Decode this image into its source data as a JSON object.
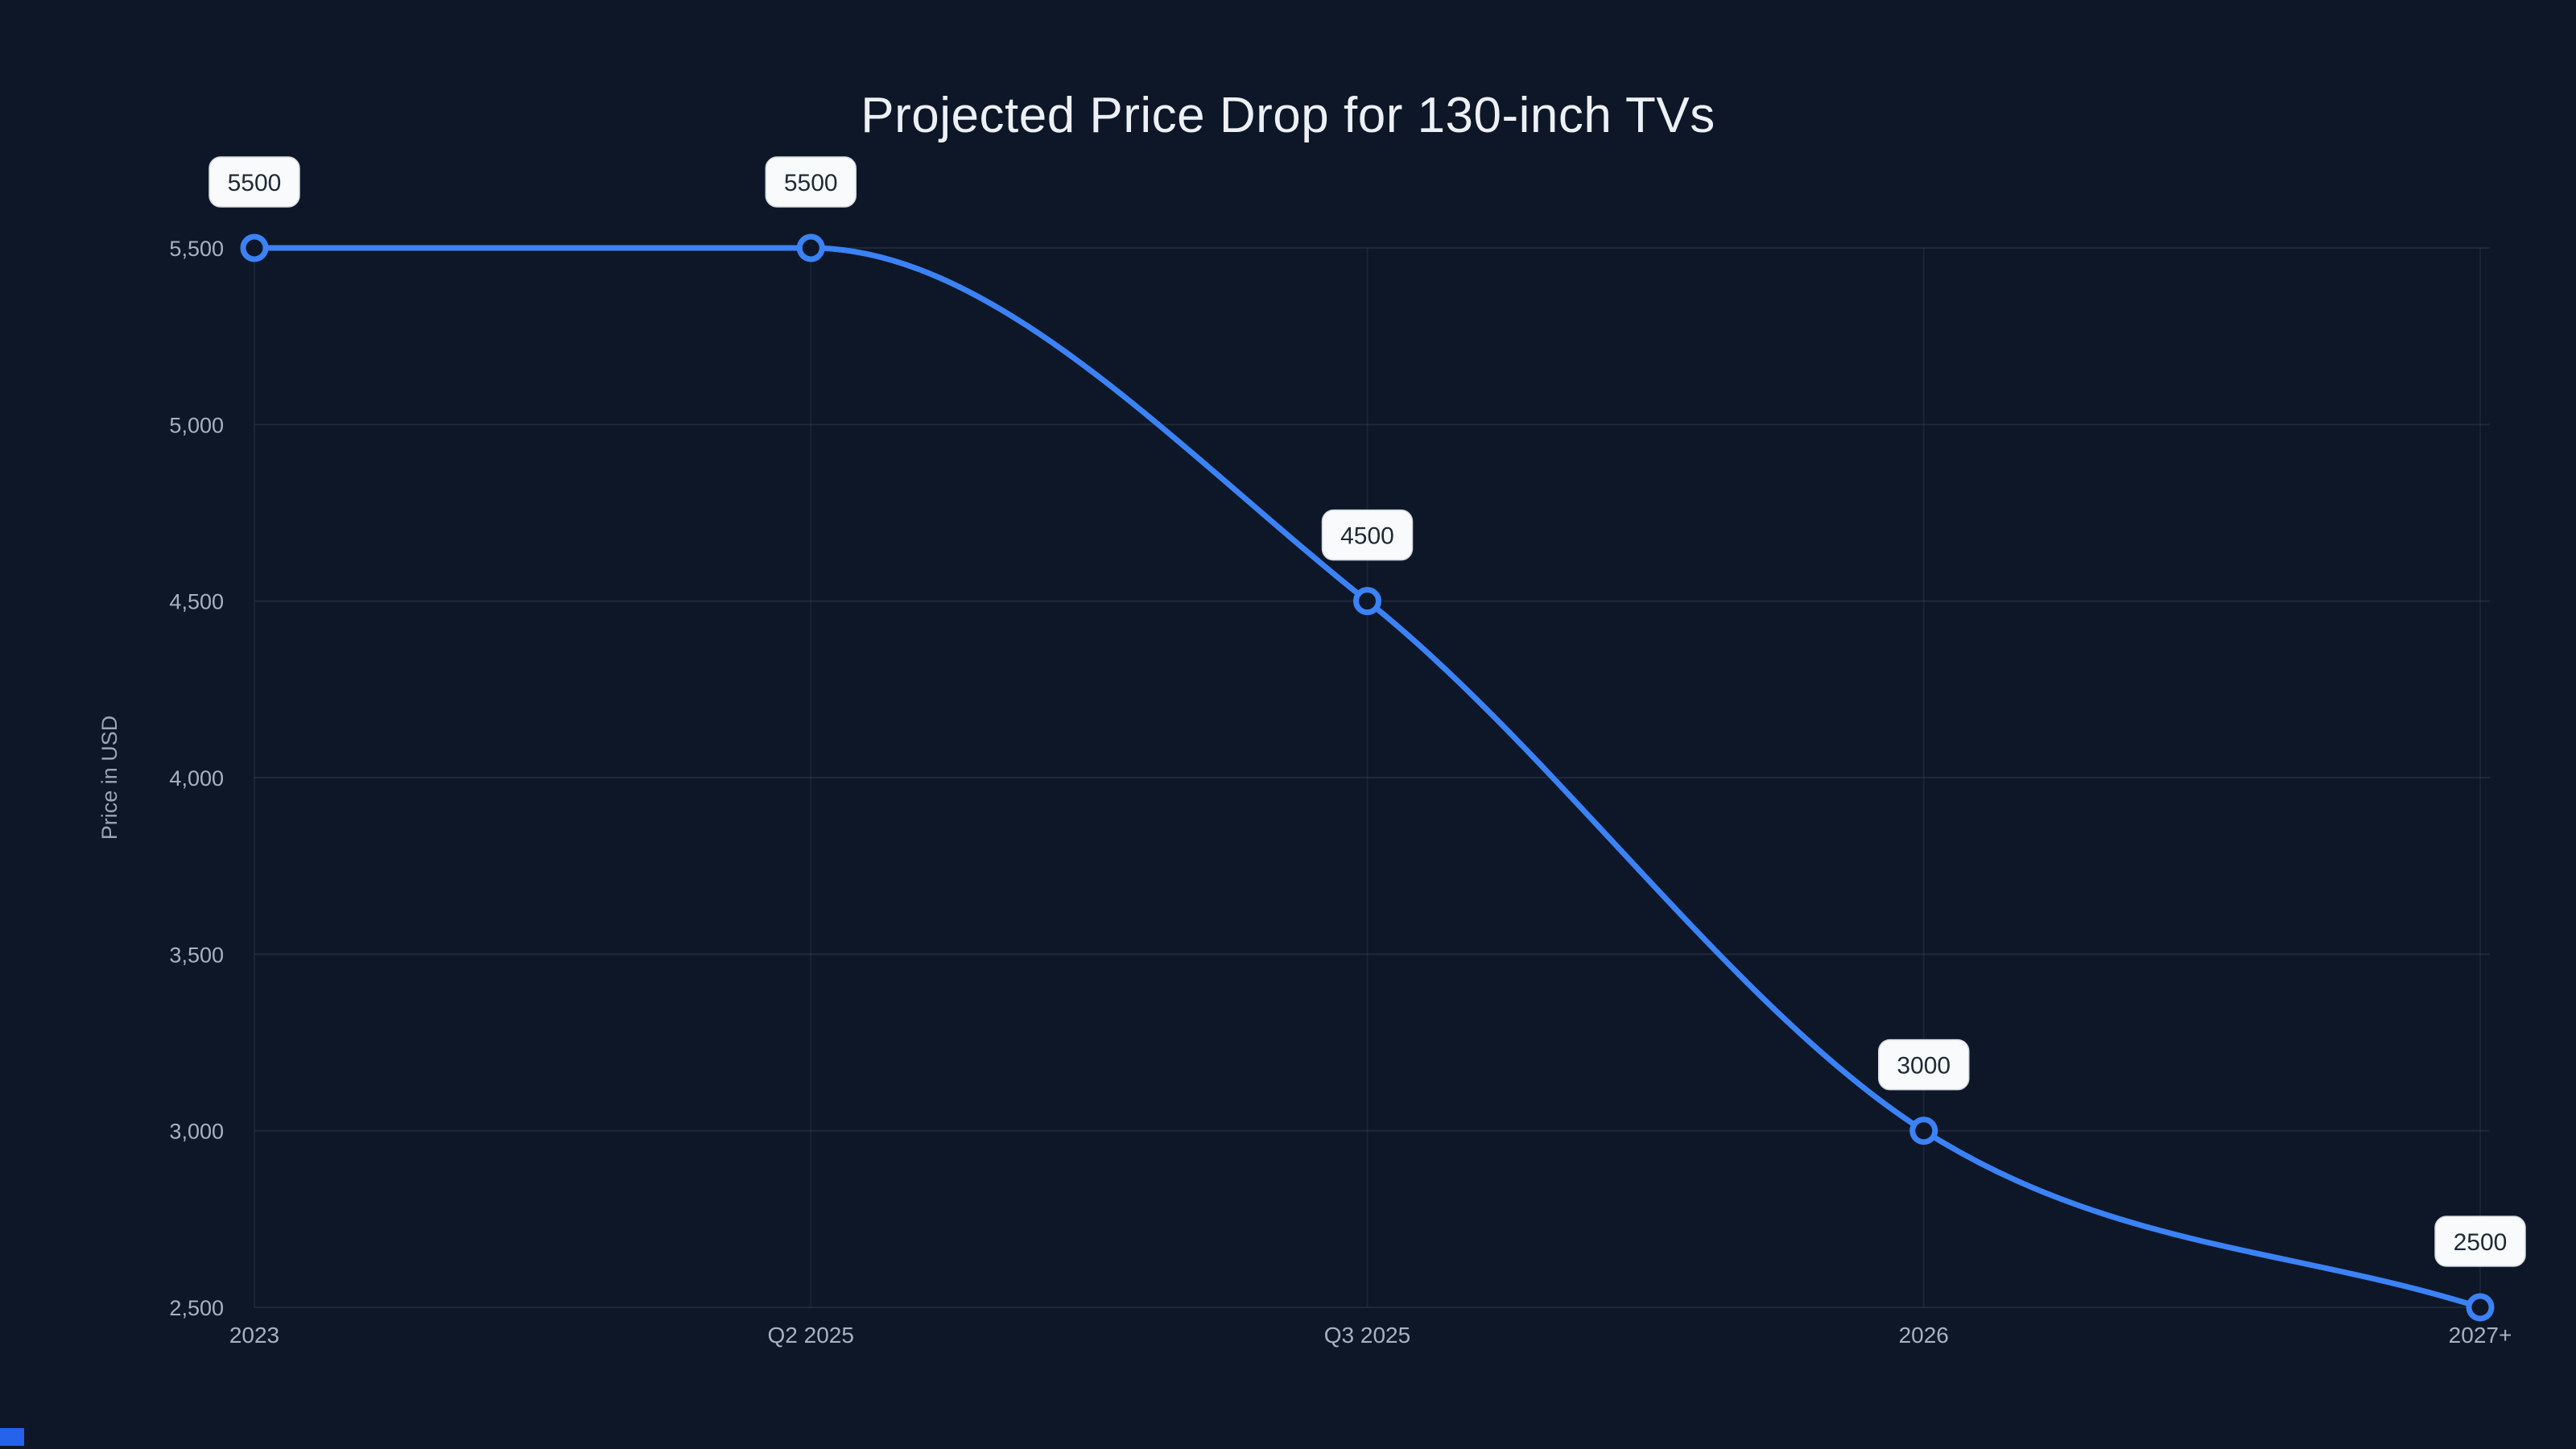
{
  "title": "Projected Price Drop for 130-inch TVs",
  "colors": {
    "background": "#0e1728",
    "line": "#3b82f6",
    "marker_stroke": "#3b82f6",
    "marker_fill": "#0e1728",
    "grid": "rgba(148,163,184,0.12)",
    "tick_text": "#a8b1bf",
    "axis_title_text": "#9aa4b2",
    "pill_bg": "#f8fafc",
    "pill_border": "#d4d9e0",
    "pill_text": "#1f2937",
    "title_text": "#edf1f7",
    "corner_accent": "#2563eb"
  },
  "chart_data": {
    "type": "line",
    "title": "Projected Price Drop for 130-inch TVs",
    "categories": [
      "2023",
      "Q2 2025",
      "Q3 2025",
      "2026",
      "2027+"
    ],
    "values": [
      5500,
      5500,
      4500,
      3000,
      2500
    ],
    "point_labels": [
      "5500",
      "5500",
      "4500",
      "3000",
      "2500"
    ],
    "xlabel": "",
    "ylabel": "Price in USD",
    "ylim": [
      2500,
      5500
    ],
    "y_tick_values": [
      5500,
      5000,
      4500,
      4000,
      3500,
      3000,
      2500
    ],
    "y_tick_labels": [
      "5,500",
      "5,000",
      "4,500",
      "4,000",
      "3,500",
      "3,000",
      "2,500"
    ],
    "grid": true,
    "legend": false,
    "curve": "monotone"
  }
}
